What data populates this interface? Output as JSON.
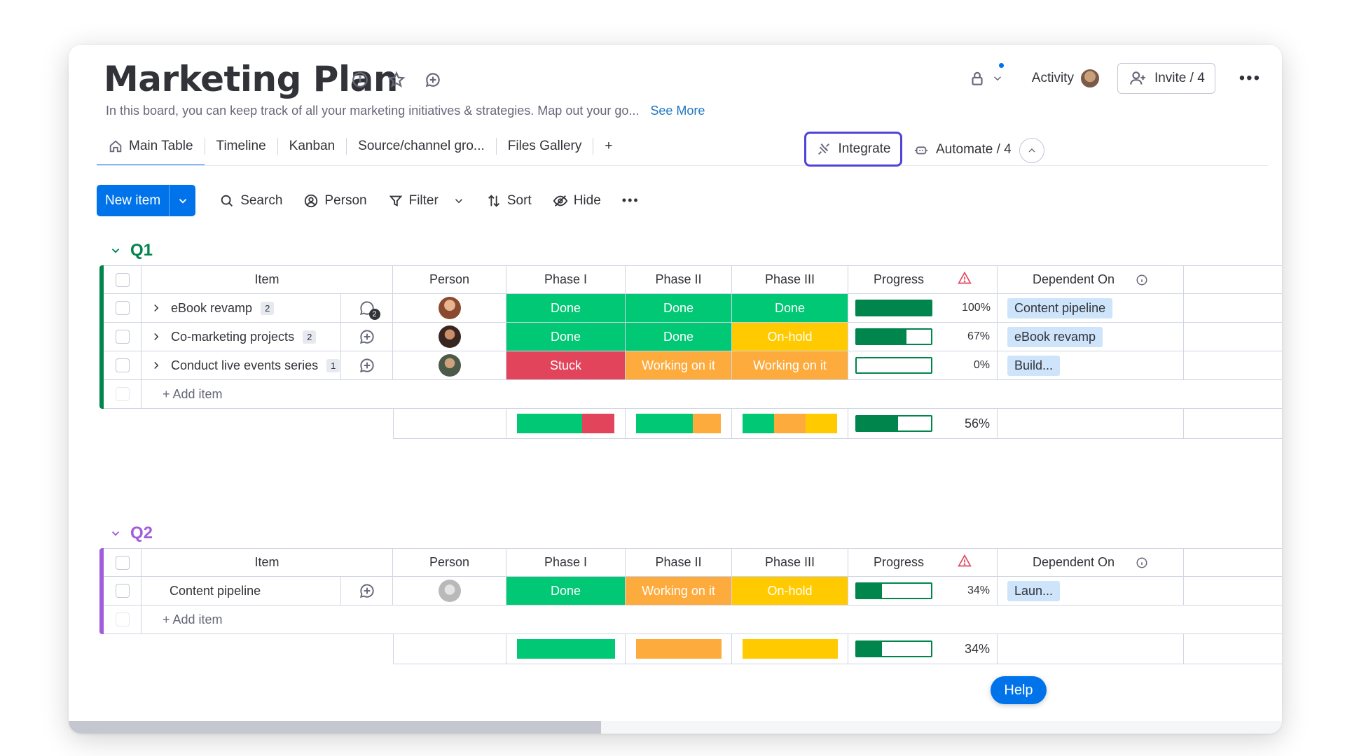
{
  "board": {
    "title": "Marketing Plan",
    "description": "In this board, you can keep track of all your marketing initiatives & strategies. Map out your go...",
    "see_more": "See More"
  },
  "header": {
    "activity": "Activity",
    "invite": "Invite / 4"
  },
  "tabs": [
    {
      "label": "Main Table",
      "icon": "home-icon"
    },
    {
      "label": "Timeline"
    },
    {
      "label": "Kanban"
    },
    {
      "label": "Source/channel gro..."
    },
    {
      "label": "Files Gallery"
    },
    {
      "label": "+"
    }
  ],
  "actions": {
    "integrate": "Integrate",
    "automate": "Automate / 4"
  },
  "toolbar": {
    "new_item": "New item",
    "search": "Search",
    "person": "Person",
    "filter": "Filter",
    "sort": "Sort",
    "hide": "Hide"
  },
  "columns": {
    "item": "Item",
    "person": "Person",
    "phase1": "Phase I",
    "phase2": "Phase II",
    "phase3": "Phase III",
    "progress": "Progress",
    "dependent": "Dependent On"
  },
  "colors": {
    "done": "#00c875",
    "stuck": "#e2445c",
    "working": "#fdab3d",
    "onhold": "#ffcb00",
    "q1": "#00854d",
    "q2": "#a25ddc"
  },
  "groups": [
    {
      "name": "Q1",
      "color": "#00854d",
      "rows": [
        {
          "item": "eBook revamp",
          "count": "2",
          "comments": "2",
          "phase1": "Done",
          "phase2": "Done",
          "phase3": "Done",
          "progress": 1.0,
          "progress_label": "100%",
          "dependent": "Content pipeline"
        },
        {
          "item": "Co-marketing projects",
          "count": "2",
          "phase1": "Done",
          "phase2": "Done",
          "phase3": "On-hold",
          "progress": 0.67,
          "progress_label": "67%",
          "dependent": "eBook revamp"
        },
        {
          "item": "Conduct live events series",
          "count": "1",
          "phase1": "Stuck",
          "phase2": "Working on it",
          "phase3": "Working on it",
          "progress": 0.0,
          "progress_label": "0%",
          "dependent": "Build..."
        }
      ],
      "add_item": "+ Add item",
      "summary_progress": 0.56,
      "summary_label": "56%"
    },
    {
      "name": "Q2",
      "color": "#a25ddc",
      "rows": [
        {
          "item": "Content pipeline",
          "phase1": "Done",
          "phase2": "Working on it",
          "phase3": "On-hold",
          "progress": 0.34,
          "progress_label": "34%",
          "dependent": "Laun..."
        }
      ],
      "add_item": "+ Add item",
      "summary_progress": 0.34,
      "summary_label": "34%"
    }
  ],
  "help": "Help"
}
